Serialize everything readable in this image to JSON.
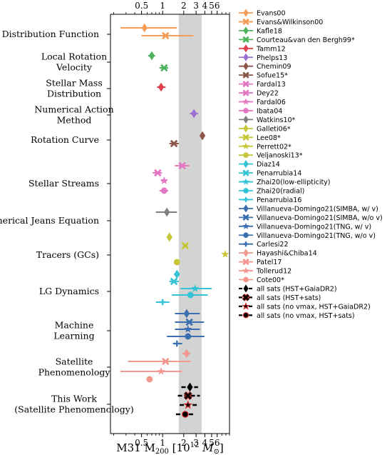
{
  "chart_data": {
    "type": "forest",
    "xlabel": "M31 M$_{200}$ [10$^{12}$ M$_\\odot$]",
    "xlabel_parts": {
      "main": "M31 M",
      "sub": "200",
      "mid": " [10",
      "sup": "12",
      "unit": " M",
      "unit_sub": "⊙",
      "end": "]"
    },
    "xscale": "log",
    "xlim": [
      0.18,
      9.0
    ],
    "xticks": [
      {
        "v": 0.5,
        "label": "0.5"
      },
      {
        "v": 1,
        "label": "1"
      },
      {
        "v": 2,
        "label": "2"
      },
      {
        "v": 3,
        "label": "3"
      },
      {
        "v": 4,
        "label": "4"
      },
      {
        "v": 5,
        "label": "5"
      },
      {
        "v": 6,
        "label": "6"
      }
    ],
    "shaded_band": [
      1.7,
      3.6
    ],
    "categories": [
      {
        "label": "Distribution Function",
        "y": 48
      },
      {
        "label": "Local Rotation\nVelocity",
        "y": 87
      },
      {
        "label": "Stellar Mass\nDistribution",
        "y": 124
      },
      {
        "label": "Numerical Action\nMethod",
        "y": 161
      },
      {
        "label": "Rotation Curve",
        "y": 196
      },
      {
        "label": "Stellar Streams",
        "y": 257
      },
      {
        "label": "Spherical Jeans Equation",
        "y": 309
      },
      {
        "label": "Tracers (GCs)",
        "y": 357
      },
      {
        "label": "LG Dynamics",
        "y": 408
      },
      {
        "label": "Machine\nLearning",
        "y": 463
      },
      {
        "label": "Satellite\nPhenomenology",
        "y": 514
      },
      {
        "label": "This Work\n(Satellite Phenomenology)",
        "y": 566
      }
    ],
    "series": [
      {
        "name": "Evans00",
        "color": "#f59d57",
        "marker": "diamond",
        "value": 0.55,
        "lo": 0.25,
        "hi": 1.6,
        "y": 39
      },
      {
        "name": "Evans&Wilkinson00",
        "color": "#f59d57",
        "marker": "x",
        "value": 1.1,
        "lo": 0.5,
        "hi": 2.75,
        "y": 50
      },
      {
        "name": "Kafle18",
        "color": "#4db35c",
        "marker": "diamond",
        "value": 0.7,
        "lo": 0.62,
        "hi": 0.78,
        "y": 78
      },
      {
        "name": "Courteau&van den Bergh99*",
        "color": "#4db35c",
        "marker": "x",
        "value": 1.05,
        "lo": 0.9,
        "hi": 1.2,
        "y": 95
      },
      {
        "name": "Tamm12",
        "color": "#e0404a",
        "marker": "diamond",
        "value": 0.95,
        "lo": 0.83,
        "hi": 1.1,
        "y": 122
      },
      {
        "name": "Phelps13",
        "color": "#9b6fd0",
        "marker": "diamond",
        "value": 2.8,
        "lo": 2.45,
        "hi": 3.2,
        "y": 159
      },
      {
        "name": "Chemin09",
        "color": "#8c564b",
        "marker": "diamond",
        "value": 3.7,
        "lo": 3.55,
        "hi": 3.85,
        "y": 190
      },
      {
        "name": "Sofue15*",
        "color": "#8c564b",
        "marker": "x",
        "value": 1.45,
        "lo": 1.25,
        "hi": 1.7,
        "y": 201
      },
      {
        "name": "Fardal13",
        "color": "#e377c2",
        "marker": "x",
        "value": 1.9,
        "lo": 1.5,
        "hi": 2.4,
        "y": 232
      },
      {
        "name": "Dey22",
        "color": "#e377c2",
        "marker": "x",
        "value": 0.85,
        "lo": 0.72,
        "hi": 0.98,
        "y": 242
      },
      {
        "name": "Fardal06",
        "color": "#e377c2",
        "marker": "star",
        "value": 1.05,
        "lo": 0.95,
        "hi": 1.15,
        "y": 253
      },
      {
        "name": "Ibata04",
        "color": "#e377c2",
        "marker": "circle",
        "value": 1.05,
        "lo": 0.9,
        "hi": 1.2,
        "y": 267
      },
      {
        "name": "Watkins10*",
        "color": "#7f7f7f",
        "marker": "diamond",
        "value": 1.15,
        "lo": 0.8,
        "hi": 1.6,
        "y": 297
      },
      {
        "name": "Galleti06*",
        "color": "#c6c636",
        "marker": "diamond",
        "value": 1.25,
        "lo": 1.2,
        "hi": 1.3,
        "y": 332
      },
      {
        "name": "Lee08*",
        "color": "#c6c636",
        "marker": "x",
        "value": 2.1,
        "lo": 1.95,
        "hi": 2.25,
        "y": 344
      },
      {
        "name": "Perrett02*",
        "color": "#c6c636",
        "marker": "star",
        "value": 7.8,
        "lo": 7.6,
        "hi": 8.0,
        "y": 356
      },
      {
        "name": "Veljanoski13*",
        "color": "#c6c636",
        "marker": "circle",
        "value": 1.6,
        "lo": 1.45,
        "hi": 1.75,
        "y": 367
      },
      {
        "name": "Diaz14",
        "color": "#33c2d6",
        "marker": "diamond",
        "value": 1.6,
        "lo": 1.45,
        "hi": 1.75,
        "y": 384
      },
      {
        "name": "Penarrubia14",
        "color": "#33c2d6",
        "marker": "x",
        "value": 1.45,
        "lo": 1.25,
        "hi": 1.7,
        "y": 394
      },
      {
        "name": "Zhai20(low-ellipticity)",
        "color": "#33c2d6",
        "marker": "star",
        "value": 2.9,
        "lo": 1.8,
        "hi": 5.0,
        "y": 404
      },
      {
        "name": "Zhai20(radial)",
        "color": "#33c2d6",
        "marker": "circle",
        "value": 2.5,
        "lo": 1.35,
        "hi": 4.4,
        "y": 413
      },
      {
        "name": "Penarrubia16",
        "color": "#33c2d6",
        "marker": "plus",
        "value": 1.0,
        "lo": 0.8,
        "hi": 1.25,
        "y": 423
      },
      {
        "name": "Villanueva-Domingo21(SIMBA, w/ v)",
        "color": "#3b6fb0",
        "marker": "diamond",
        "value": 2.2,
        "lo": 1.5,
        "hi": 3.4,
        "y": 439
      },
      {
        "name": "Villanueva-Domingo21(SIMBA, w/o v)",
        "color": "#3b6fb0",
        "marker": "x",
        "value": 2.4,
        "lo": 1.5,
        "hi": 3.9,
        "y": 451
      },
      {
        "name": "Villanueva-Domingo21(TNG, w/ v)",
        "color": "#3b6fb0",
        "marker": "star",
        "value": 2.3,
        "lo": 1.5,
        "hi": 3.4,
        "y": 461
      },
      {
        "name": "Villanueva-Domingo21(TNG, w/o v)",
        "color": "#3b6fb0",
        "marker": "circle",
        "value": 2.3,
        "lo": 1.15,
        "hi": 3.95,
        "y": 471
      },
      {
        "name": "Carlesi22",
        "color": "#3b6fb0",
        "marker": "plus",
        "value": 1.6,
        "lo": 1.4,
        "hi": 1.9,
        "y": 481
      },
      {
        "name": "Hayashi&Chiba14",
        "color": "#f4978e",
        "marker": "diamond",
        "value": 2.2,
        "lo": 1.9,
        "hi": 2.5,
        "y": 495
      },
      {
        "name": "Patel17",
        "color": "#f4978e",
        "marker": "x",
        "value": 1.1,
        "lo": 0.32,
        "hi": 2.5,
        "y": 506
      },
      {
        "name": "Tollerud12",
        "color": "#f4978e",
        "marker": "star",
        "value": 0.95,
        "lo": 0.25,
        "hi": 1.9,
        "y": 520
      },
      {
        "name": "Cote00*",
        "color": "#f4978e",
        "marker": "circle",
        "value": 0.65,
        "lo": 0.6,
        "hi": 0.7,
        "y": 531
      },
      {
        "name": "all sats (HST+GaiaDR2)",
        "color": "#000000",
        "marker": "diamond",
        "value": 2.45,
        "lo": 1.85,
        "hi": 3.2,
        "y": 542,
        "style": "dashed"
      },
      {
        "name": "all sats (HST+sats)",
        "color": "#000000",
        "marker": "x",
        "value": 2.3,
        "lo": 1.65,
        "hi": 3.4,
        "y": 554,
        "style": "dashed"
      },
      {
        "name": "all sats (no vmax, HST+GaiaDR2)",
        "color": "#000000",
        "marker": "star",
        "value": 2.3,
        "lo": 1.75,
        "hi": 3.2,
        "y": 567,
        "style": "dashed"
      },
      {
        "name": "all sats (no vmax, HST+sats)",
        "color": "#000000",
        "marker": "circle",
        "value": 2.1,
        "lo": 1.55,
        "hi": 2.9,
        "y": 580,
        "style": "dashed"
      }
    ]
  }
}
